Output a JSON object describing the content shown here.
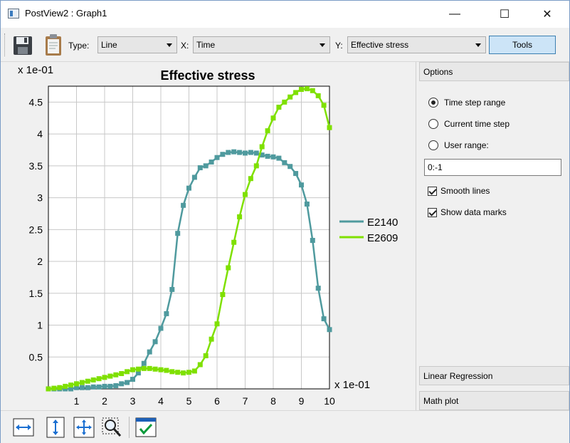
{
  "window": {
    "title": "PostView2 : Graph1",
    "controls": {
      "minimize": "—",
      "maximize": "☐",
      "close": "✕"
    }
  },
  "toolbar": {
    "icons": [
      "save-icon",
      "clipboard-icon"
    ],
    "type_label": "Type:",
    "type_value": "Line",
    "x_label": "X:",
    "x_value": "Time",
    "y_label": "Y:",
    "y_value": "Effective stress",
    "tools_label": "Tools"
  },
  "chart_data": {
    "type": "line",
    "title": "Effective stress",
    "x_scale_label": "x 1e-01",
    "y_scale_label": "x 1e-01",
    "xlim": [
      0,
      10
    ],
    "ylim": [
      0,
      4.75
    ],
    "x_ticks": [
      "1",
      "2",
      "3",
      "4",
      "5",
      "6",
      "7",
      "8",
      "9",
      "10"
    ],
    "y_ticks": [
      "0.5",
      "1",
      "1.5",
      "2",
      "2.5",
      "3",
      "3.5",
      "4",
      "4.5"
    ],
    "grid": true,
    "legend_position": "right",
    "series": [
      {
        "name": "E2140",
        "color": "#4f9a9e",
        "x": [
          0,
          0.2,
          0.4,
          0.6,
          0.8,
          1.0,
          1.2,
          1.4,
          1.6,
          1.8,
          2.0,
          2.2,
          2.4,
          2.6,
          2.8,
          3.0,
          3.2,
          3.4,
          3.6,
          3.8,
          4.0,
          4.2,
          4.4,
          4.6,
          4.8,
          5.0,
          5.2,
          5.4,
          5.6,
          5.8,
          6.0,
          6.2,
          6.4,
          6.6,
          6.8,
          7.0,
          7.2,
          7.4,
          7.6,
          7.8,
          8.0,
          8.2,
          8.4,
          8.6,
          8.8,
          9.0,
          9.2,
          9.4,
          9.6,
          9.8,
          10.0
        ],
        "y": [
          0.0,
          0.0,
          0.0,
          0.0,
          0.0,
          0.02,
          0.02,
          0.02,
          0.03,
          0.03,
          0.04,
          0.04,
          0.05,
          0.08,
          0.1,
          0.15,
          0.25,
          0.4,
          0.58,
          0.74,
          0.95,
          1.18,
          1.56,
          2.44,
          2.88,
          3.15,
          3.32,
          3.47,
          3.5,
          3.56,
          3.63,
          3.68,
          3.71,
          3.72,
          3.71,
          3.7,
          3.71,
          3.7,
          3.67,
          3.65,
          3.64,
          3.62,
          3.55,
          3.49,
          3.38,
          3.2,
          2.9,
          2.33,
          1.58,
          1.1,
          0.93
        ]
      },
      {
        "name": "E2609",
        "color": "#7fe000",
        "x": [
          0,
          0.2,
          0.4,
          0.6,
          0.8,
          1.0,
          1.2,
          1.4,
          1.6,
          1.8,
          2.0,
          2.2,
          2.4,
          2.6,
          2.8,
          3.0,
          3.2,
          3.4,
          3.6,
          3.8,
          4.0,
          4.2,
          4.4,
          4.6,
          4.8,
          5.0,
          5.2,
          5.4,
          5.6,
          5.8,
          6.0,
          6.2,
          6.4,
          6.6,
          6.8,
          7.0,
          7.2,
          7.4,
          7.6,
          7.8,
          8.0,
          8.2,
          8.4,
          8.6,
          8.8,
          9.0,
          9.2,
          9.4,
          9.6,
          9.8,
          10.0
        ],
        "y": [
          0.0,
          0.01,
          0.02,
          0.04,
          0.06,
          0.08,
          0.1,
          0.12,
          0.14,
          0.16,
          0.18,
          0.2,
          0.22,
          0.24,
          0.27,
          0.3,
          0.31,
          0.32,
          0.32,
          0.31,
          0.3,
          0.29,
          0.27,
          0.26,
          0.25,
          0.26,
          0.28,
          0.38,
          0.52,
          0.78,
          1.02,
          1.48,
          1.9,
          2.3,
          2.7,
          3.05,
          3.3,
          3.5,
          3.8,
          4.05,
          4.25,
          4.42,
          4.5,
          4.58,
          4.65,
          4.7,
          4.71,
          4.68,
          4.6,
          4.45,
          4.1
        ]
      }
    ]
  },
  "options_panel": {
    "header": "Options",
    "radios": [
      {
        "label": "Time step range",
        "checked": true
      },
      {
        "label": "Current time step",
        "checked": false
      },
      {
        "label": "User range:",
        "checked": false
      }
    ],
    "range_value": "0:-1",
    "checkboxes": [
      {
        "label": "Smooth lines",
        "checked": true
      },
      {
        "label": "Show data marks",
        "checked": true
      }
    ]
  },
  "linear_regression_header": "Linear Regression",
  "math_plot_header": "Math plot",
  "bottom_toolbar": {
    "icons": [
      "zoom-width-icon",
      "zoom-height-icon",
      "zoom-fit-icon",
      "zoom-select-icon",
      "calendar-check-icon"
    ]
  }
}
